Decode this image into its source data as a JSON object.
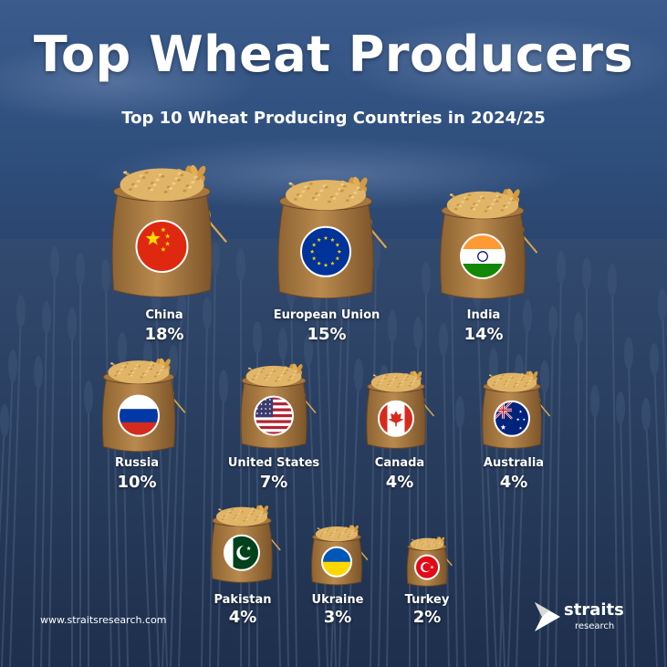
{
  "header": {
    "title": "Top Wheat Producers",
    "subtitle": "Top 10 Wheat Producing Countries in 2024/25"
  },
  "footer": {
    "website": "www.straitsresearch.com",
    "logo_word": "straits",
    "logo_sub": "research"
  },
  "chart_data": {
    "type": "pictorial",
    "unit": "%",
    "categories": [
      "China",
      "European Union",
      "India",
      "Russia",
      "United States",
      "Canada",
      "Australia",
      "Pakistan",
      "Ukraine",
      "Turkey"
    ],
    "values": [
      18,
      15,
      14,
      10,
      7,
      4,
      4,
      4,
      3,
      2
    ],
    "labels": [
      "18%",
      "15%",
      "14%",
      "10%",
      "7%",
      "4%",
      "4%",
      "4%",
      "3%",
      "2%"
    ],
    "flags": [
      "china-flag",
      "eu-flag",
      "india-flag",
      "russia-flag",
      "usa-flag",
      "canada-flag",
      "australia-flag",
      "pakistan-flag",
      "ukraine-flag",
      "turkey-flag"
    ]
  },
  "colors": {
    "sack": "#b98a4e",
    "grain": "#e0b567",
    "background": "#2b4670"
  }
}
